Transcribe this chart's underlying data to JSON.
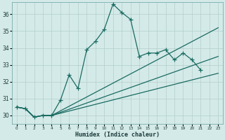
{
  "xlabel": "Humidex (Indice chaleur)",
  "bg_color": "#d4eae8",
  "grid_color": "#b2cecc",
  "line_color": "#1a6b62",
  "xlim": [
    -0.5,
    23.5
  ],
  "ylim": [
    29.5,
    36.7
  ],
  "yticks": [
    30,
    31,
    32,
    33,
    34,
    35,
    36
  ],
  "xticks": [
    0,
    1,
    2,
    3,
    4,
    5,
    6,
    7,
    8,
    9,
    10,
    11,
    12,
    13,
    14,
    15,
    16,
    17,
    18,
    19,
    20,
    21,
    22,
    23
  ],
  "series1_x": [
    0,
    1,
    2,
    3,
    4,
    5,
    6,
    7,
    8,
    9,
    10,
    11,
    12,
    13,
    14,
    15,
    16,
    17,
    18,
    19,
    20,
    21,
    22,
    23
  ],
  "series1_y": [
    30.5,
    30.4,
    29.9,
    30.0,
    30.0,
    30.9,
    32.4,
    31.6,
    33.9,
    34.4,
    35.1,
    36.6,
    36.1,
    35.7,
    33.5,
    33.7,
    33.7,
    33.9,
    33.3,
    33.7,
    33.3,
    32.7,
    null,
    null
  ],
  "series1_break_after": 21,
  "series2_x": [
    0,
    1,
    2,
    3,
    4,
    23
  ],
  "series2_y": [
    30.5,
    30.4,
    29.9,
    30.0,
    30.0,
    35.2
  ],
  "series3_x": [
    0,
    1,
    2,
    3,
    4,
    23
  ],
  "series3_y": [
    30.5,
    30.4,
    29.9,
    30.0,
    30.0,
    33.5
  ],
  "series4_x": [
    0,
    1,
    2,
    3,
    4,
    23
  ],
  "series4_y": [
    30.5,
    30.4,
    29.9,
    30.0,
    30.0,
    32.5
  ]
}
